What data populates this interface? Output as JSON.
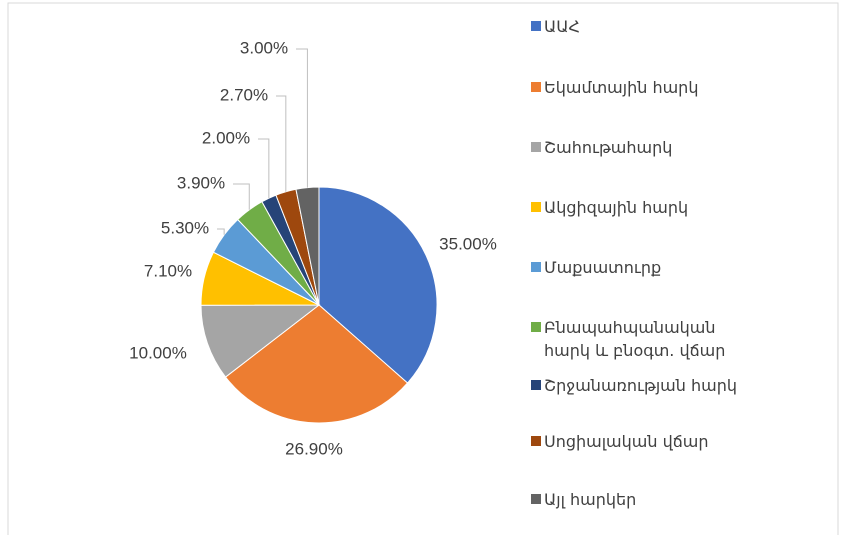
{
  "chart_data": {
    "type": "pie",
    "categories": [
      "ԱԱՀ",
      "Եկամտային հարկ",
      "Շահութահարկ",
      "Ակցիզային հարկ",
      "Մաքսատուրք",
      "Բնապահպանական հարկ և բնօգտ. վճար",
      "Շրջանառության հարկ",
      "Սոցիալական վճար",
      "Այլ հարկեր"
    ],
    "values": [
      35,
      26.9,
      10,
      7.1,
      5.3,
      3.9,
      2,
      2.7,
      3
    ],
    "value_labels": [
      "35.00%",
      "26.90%",
      "10.00%",
      "7.10%",
      "5.30%",
      "3.90%",
      "2.00%",
      "2.70%",
      "3.00%"
    ],
    "colors": [
      "#4472c4",
      "#ed7d31",
      "#a5a5a5",
      "#ffc000",
      "#5b9bd5",
      "#70ad47",
      "#264478",
      "#9e480e",
      "#636363"
    ],
    "legend": "right"
  }
}
